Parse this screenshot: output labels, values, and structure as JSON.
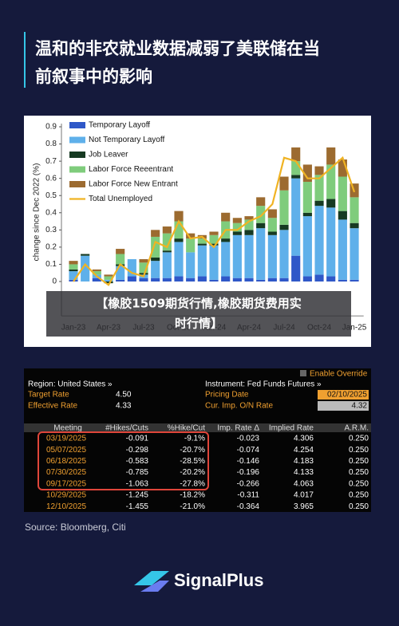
{
  "header": {
    "title_lines": [
      "温和的非农就业数据减弱了美联储在当",
      "前叙事中的影响"
    ]
  },
  "chart_data": {
    "type": "bar",
    "stacked": true,
    "y_label": "change since Dec 2022 (%)",
    "categories": [
      "Jan-23",
      null,
      null,
      "Apr-23",
      null,
      null,
      "Jul-23",
      null,
      null,
      "Oct-23",
      null,
      null,
      "Jan-24",
      null,
      null,
      "Apr-24",
      null,
      null,
      "Jul-24",
      null,
      null,
      "Oct-24",
      null,
      null,
      "Jan-25"
    ],
    "series": [
      {
        "name": "Temporary Layoff",
        "color": "#2f58c8",
        "values": [
          0.01,
          0.0,
          0.02,
          0.0,
          0.01,
          0.03,
          0.02,
          0.02,
          0.02,
          0.03,
          0.02,
          0.03,
          0.01,
          0.03,
          0.02,
          0.02,
          0.01,
          0.02,
          0.02,
          0.15,
          0.03,
          0.04,
          0.03,
          0.01,
          0.01
        ]
      },
      {
        "name": "Not Temporary Layoff",
        "color": "#5fb0ea",
        "values": [
          0.05,
          0.15,
          0.02,
          0.01,
          0.08,
          0.1,
          0.02,
          0.1,
          0.15,
          0.2,
          0.15,
          0.18,
          0.2,
          0.2,
          0.25,
          0.25,
          0.3,
          0.25,
          0.28,
          0.45,
          0.35,
          0.4,
          0.4,
          0.35,
          0.3
        ]
      },
      {
        "name": "Job Leaver",
        "color": "#163a22",
        "values": [
          0.01,
          0.01,
          0.0,
          -0.01,
          0.01,
          0.0,
          0.01,
          0.02,
          0.01,
          0.02,
          0.0,
          0.01,
          0.01,
          0.02,
          0.02,
          0.03,
          0.03,
          0.02,
          0.03,
          0.02,
          0.02,
          0.03,
          0.05,
          0.05,
          0.03
        ]
      },
      {
        "name": "Labor Force Reeentrant",
        "color": "#7fcc7c",
        "values": [
          0.03,
          0.0,
          0.02,
          0.02,
          0.06,
          0.0,
          0.06,
          0.12,
          0.1,
          0.1,
          0.08,
          0.03,
          0.05,
          0.1,
          0.05,
          0.06,
          0.1,
          0.08,
          0.2,
          0.08,
          0.18,
          0.15,
          0.2,
          0.2,
          0.15
        ]
      },
      {
        "name": "Labor Force New Entrant",
        "color": "#9c6b30",
        "values": [
          0.02,
          0.0,
          0.01,
          0.01,
          0.03,
          0.0,
          0.02,
          0.04,
          0.04,
          0.06,
          0.03,
          0.02,
          0.02,
          0.05,
          0.03,
          0.02,
          0.05,
          0.05,
          0.08,
          0.08,
          0.1,
          0.05,
          0.1,
          0.1,
          0.08
        ]
      },
      {
        "name": "Total Unemployed",
        "color": "#f0b323",
        "kind": "line",
        "values": [
          0.0,
          0.1,
          0.03,
          -0.02,
          0.1,
          0.05,
          0.03,
          0.23,
          0.2,
          0.35,
          0.25,
          0.26,
          0.2,
          0.3,
          0.3,
          0.35,
          0.38,
          0.45,
          0.72,
          0.7,
          0.6,
          0.6,
          0.66,
          0.72,
          0.52
        ]
      }
    ],
    "ylim": [
      -0.2,
      0.9
    ],
    "yticks": [
      0,
      0.1,
      0.2,
      0.3,
      0.4,
      0.5,
      0.6,
      0.7,
      0.8,
      0.9
    ],
    "legend": "top-left"
  },
  "overlay": {
    "lines": [
      "【橡胶1509期货行情,橡胶期货费用实",
      "时行情】"
    ]
  },
  "table": {
    "override": "Enable Override",
    "region": "Region: United States »",
    "instrument": "Instrument: Fed Funds Futures »",
    "fields_left": [
      {
        "label": "Target Rate",
        "value": "4.50"
      },
      {
        "label": "Effective Rate",
        "value": "4.33"
      }
    ],
    "fields_right": [
      {
        "label": "Pricing Date",
        "value": "02/10/2025"
      },
      {
        "label": "Cur. Imp. O/N Rate",
        "value": "4.32"
      }
    ],
    "columns": [
      "Meeting",
      "#Hikes/Cuts",
      "%Hike/Cut",
      "Imp. Rate Δ",
      "Implied Rate",
      "A.R.M."
    ],
    "rows": [
      [
        "03/19/2025",
        "-0.091",
        "-9.1%",
        "-0.023",
        "4.306",
        "0.250"
      ],
      [
        "05/07/2025",
        "-0.298",
        "-20.7%",
        "-0.074",
        "4.254",
        "0.250"
      ],
      [
        "06/18/2025",
        "-0.583",
        "-28.5%",
        "-0.146",
        "4.183",
        "0.250"
      ],
      [
        "07/30/2025",
        "-0.785",
        "-20.2%",
        "-0.196",
        "4.133",
        "0.250"
      ],
      [
        "09/17/2025",
        "-1.063",
        "-27.8%",
        "-0.266",
        "4.063",
        "0.250"
      ],
      [
        "10/29/2025",
        "-1.245",
        "-18.2%",
        "-0.311",
        "4.017",
        "0.250"
      ],
      [
        "12/10/2025",
        "-1.455",
        "-21.0%",
        "-0.364",
        "3.965",
        "0.250"
      ]
    ]
  },
  "source": "Source: Bloomberg, Citi",
  "brand": "SignalPlus"
}
